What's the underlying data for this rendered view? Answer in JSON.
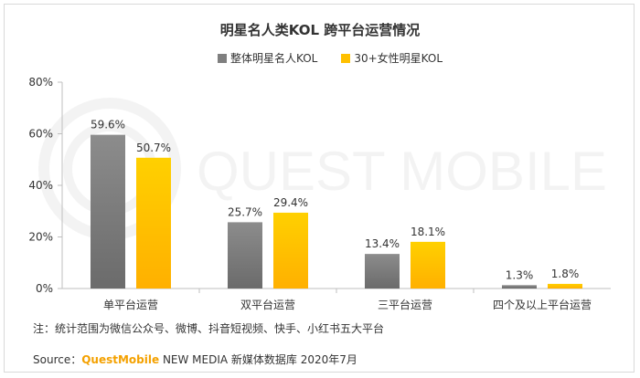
{
  "chart_data": {
    "type": "bar",
    "title": "明星名人类KOL 跨平台运营情况",
    "categories": [
      "单平台运营",
      "双平台运营",
      "三平台运营",
      "四个及以上平台运营"
    ],
    "series": [
      {
        "name": "整体明星名人KOL",
        "values": [
          59.6,
          25.7,
          13.4,
          1.3
        ],
        "labels": [
          "59.6%",
          "25.7%",
          "13.4%",
          "1.3%"
        ],
        "color": "#7f7f7f"
      },
      {
        "name": "30+女性明星KOL",
        "values": [
          50.7,
          29.4,
          18.1,
          1.8
        ],
        "labels": [
          "50.7%",
          "29.4%",
          "18.1%",
          "1.8%"
        ],
        "color": "#ffc000"
      }
    ],
    "ylim": [
      0,
      80
    ],
    "yticks": [
      "0%",
      "20%",
      "40%",
      "60%",
      "80%"
    ],
    "ytick_values": [
      0,
      20,
      40,
      60,
      80
    ],
    "legend": "top-center",
    "grid": false
  },
  "note": "注：统计范围为微信公众号、微博、抖音短视频、快手、小红书五大平台",
  "source": {
    "prefix": "Source：",
    "brand": "QuestMobile",
    "suffix": " NEW MEDIA 新媒体数据库 2020年7月"
  },
  "watermark": "QUEST MOBILE"
}
